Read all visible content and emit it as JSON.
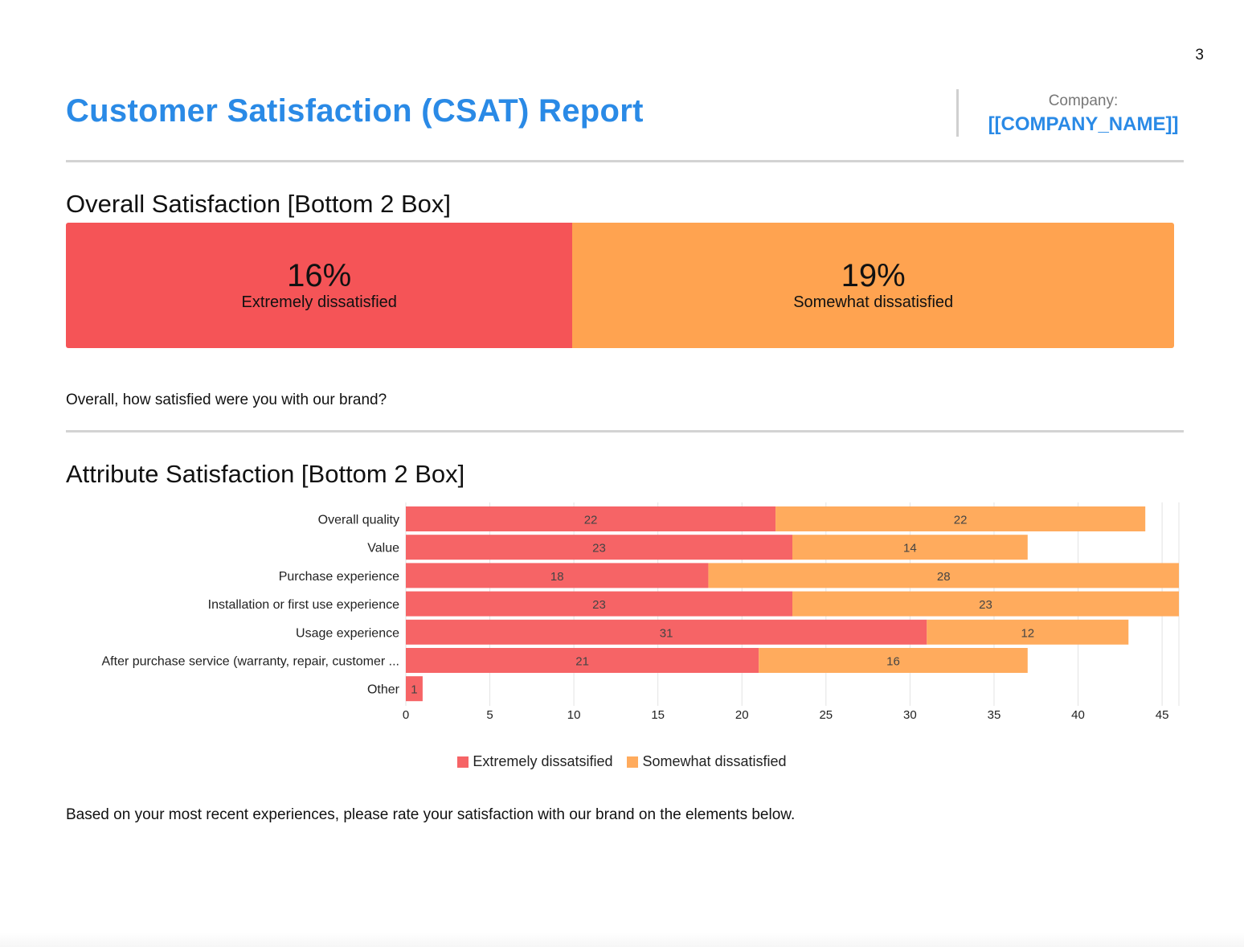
{
  "page_number": "3",
  "report": {
    "title": "Customer Satisfaction (CSAT) Report",
    "company_label": "Company:",
    "company_name": "[[COMPANY_NAME]]"
  },
  "colors": {
    "accent": "#2a8ae6",
    "extremely": "#f55457",
    "somewhat": "#ffa350",
    "extremely_chart": "#f66466",
    "somewhat_chart": "#ffab5d"
  },
  "overall": {
    "title": "Overall Satisfaction [Bottom 2 Box]",
    "segments": [
      {
        "pct": "16%",
        "value": 16,
        "label": "Extremely dissatisfied"
      },
      {
        "pct": "19%",
        "value": 19,
        "label": "Somewhat dissatisfied"
      }
    ],
    "question": "Overall, how satisfied were you with our brand?"
  },
  "attribute": {
    "title": "Attribute Satisfaction [Bottom 2 Box]",
    "question": "Based on your most recent experiences, please rate your satisfaction with our brand on the elements below."
  },
  "chart_data": {
    "type": "bar",
    "orientation": "horizontal",
    "stacked": true,
    "categories": [
      "Overall quality",
      "Value",
      "Purchase experience",
      "Installation or first use experience",
      "Usage experience",
      "After purchase service (warranty, repair, customer ...",
      "Other"
    ],
    "series": [
      {
        "name": "Extremely dissatsified",
        "values": [
          22,
          23,
          18,
          23,
          31,
          21,
          1
        ]
      },
      {
        "name": "Somewhat dissatisfied",
        "values": [
          22,
          14,
          28,
          23,
          12,
          16,
          0
        ]
      }
    ],
    "xlim": [
      0,
      46
    ],
    "xticks": [
      0,
      5,
      10,
      15,
      20,
      25,
      30,
      35,
      40,
      45
    ],
    "grid": true,
    "legend": "bottom"
  }
}
